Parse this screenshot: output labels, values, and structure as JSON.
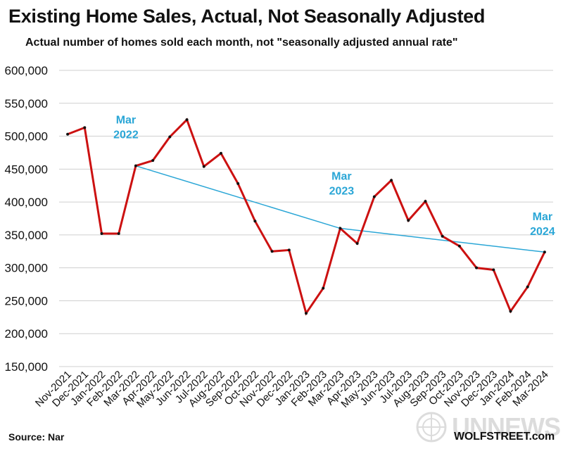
{
  "chart_data": {
    "type": "line",
    "title": "Existing Home Sales, Actual, Not Seasonally Adjusted",
    "subtitle": "Actual number of homes sold each month, not \"seasonally adjusted annual rate\"",
    "categories": [
      "Nov-2021",
      "Dec-2021",
      "Jan-2022",
      "Feb-2022",
      "Mar-2022",
      "Apr-2022",
      "May-2022",
      "Jun-2022",
      "Jul-2022",
      "Aug-2022",
      "Sep-2022",
      "Oct-2022",
      "Nov-2022",
      "Dec-2022",
      "Jan-2023",
      "Feb-2023",
      "Mar-2023",
      "Apr-2023",
      "May-2023",
      "Jun-2023",
      "Jul-2023",
      "Aug-2023",
      "Sep-2023",
      "Oct-2023",
      "Nov-2023",
      "Dec-2023",
      "Jan-2024",
      "Feb-2024",
      "Mar-2024"
    ],
    "series": [
      {
        "values": [
          503000,
          513000,
          352000,
          352000,
          455000,
          463000,
          499000,
          525000,
          454000,
          474000,
          428000,
          371000,
          325000,
          327000,
          231000,
          269000,
          360000,
          337000,
          408000,
          433000,
          372000,
          401000,
          348000,
          333000,
          300000,
          297000,
          234000,
          271000,
          324000
        ],
        "color": "#cc1111"
      }
    ],
    "comparison_line": {
      "points": [
        [
          "Mar-2022",
          455000
        ],
        [
          "Mar-2023",
          360000
        ],
        [
          "Mar-2024",
          324000
        ]
      ],
      "color": "#2aa6d6"
    },
    "annotations": [
      {
        "line1": "Mar",
        "line2": "2022",
        "at": "Mar-2022"
      },
      {
        "line1": "Mar",
        "line2": "2023",
        "at": "Mar-2023"
      },
      {
        "line1": "Mar",
        "line2": "2024",
        "at": "Mar-2024"
      }
    ],
    "yticks": [
      150000,
      200000,
      250000,
      300000,
      350000,
      400000,
      450000,
      500000,
      550000,
      600000
    ],
    "ylim": [
      150000,
      600000
    ],
    "grid": true,
    "legend": "none"
  },
  "footer": {
    "source": "Source: Nar",
    "credit": "WOLFSTREET.com",
    "watermark": "UNNEWS",
    "watermark_icon": "un-emblem-icon"
  }
}
